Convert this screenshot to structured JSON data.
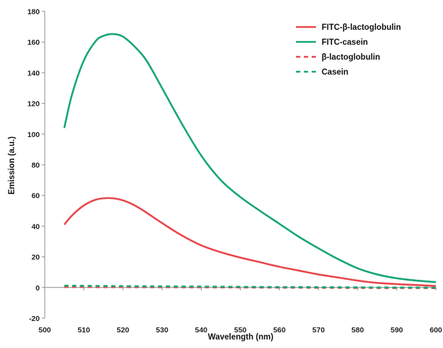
{
  "chart_data": {
    "type": "line",
    "title": "",
    "xlabel": "Wavelength (nm)",
    "ylabel": "Emission (a.u.)",
    "xlim": [
      500,
      600
    ],
    "ylim": [
      -20,
      180
    ],
    "xticks": [
      500,
      510,
      520,
      530,
      540,
      550,
      560,
      570,
      580,
      590,
      600
    ],
    "yticks": [
      -20,
      0,
      20,
      40,
      60,
      80,
      100,
      120,
      140,
      160,
      180
    ],
    "grid": false,
    "legend_position": "top-right",
    "series": [
      {
        "name": "FITC-β-lactoglobulin",
        "color": "#e8474c",
        "dash": "solid",
        "x": [
          505,
          507,
          510,
          513,
          516,
          519,
          522,
          525,
          530,
          535,
          540,
          545,
          550,
          555,
          560,
          565,
          570,
          575,
          580,
          585,
          590,
          595,
          600
        ],
        "y": [
          41,
          47,
          53.5,
          57.2,
          58.3,
          57.5,
          54.8,
          50.5,
          42,
          34,
          27.5,
          23,
          19.5,
          16.5,
          13.5,
          11,
          8.5,
          6.5,
          4.5,
          3,
          2.2,
          1.6,
          1
        ]
      },
      {
        "name": "FITC-casein",
        "color": "#17a673",
        "dash": "solid",
        "x": [
          505,
          507,
          510,
          513,
          515,
          517.5,
          520,
          523,
          526,
          530,
          535,
          540,
          545,
          550,
          555,
          560,
          565,
          570,
          575,
          580,
          585,
          590,
          595,
          600
        ],
        "y": [
          104,
          126,
          148,
          160.5,
          164,
          165.2,
          163.5,
          157,
          148,
          130,
          107,
          86,
          70,
          59,
          50,
          41.5,
          33,
          25.5,
          18.5,
          12.5,
          8.5,
          6,
          4.5,
          3.5
        ]
      },
      {
        "name": "β-lactoglobulin",
        "color": "#e8474c",
        "dash": "dashed",
        "x": [
          505,
          520,
          540,
          560,
          580,
          600
        ],
        "y": [
          0.3,
          0.2,
          0.1,
          -0.1,
          -0.3,
          -0.4
        ]
      },
      {
        "name": "Casein",
        "color": "#17a673",
        "dash": "dashed",
        "x": [
          505,
          520,
          540,
          560,
          580,
          600
        ],
        "y": [
          1.2,
          0.9,
          0.6,
          0.3,
          0.1,
          -0.1
        ]
      }
    ]
  }
}
